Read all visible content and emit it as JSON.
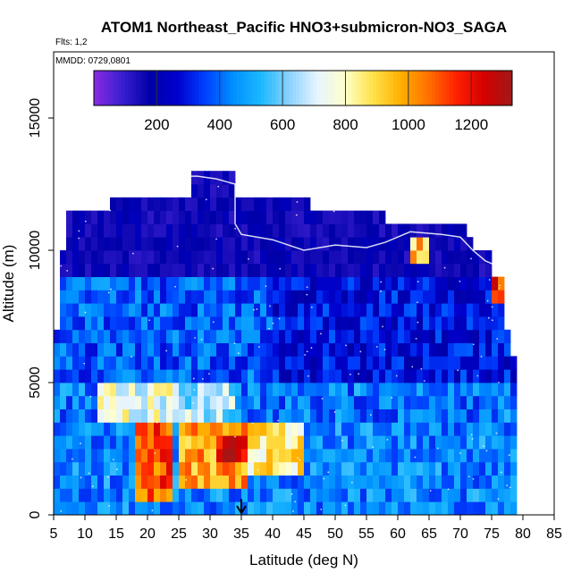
{
  "chart_data": {
    "type": "heatmap",
    "title": "ATOM1 Northeast_Pacific HNO3+submicron-NO3_SAGA",
    "subtitle_flights": "Flts: 1,2",
    "subtitle_dates": "MMDD: 0729,0801",
    "xlabel": "Latitude (deg N)",
    "ylabel": "Altitude (m)",
    "xlim": [
      5,
      85
    ],
    "ylim": [
      0,
      17500
    ],
    "x_ticks": [
      "5",
      "10",
      "15",
      "20",
      "25",
      "30",
      "35",
      "40",
      "45",
      "50",
      "55",
      "60",
      "65",
      "70",
      "75",
      "80",
      "85"
    ],
    "y_ticks": [
      "0",
      "5000",
      "10000",
      "15000"
    ],
    "colorbar": {
      "range": [
        0,
        1330
      ],
      "tick_labels": [
        "200",
        "400",
        "600",
        "800",
        "1000",
        "1200"
      ],
      "colors": [
        "#8a2be2",
        "#3a1fd0",
        "#0000a8",
        "#0000cd",
        "#0040ff",
        "#0090ff",
        "#1cb8ff",
        "#8ad2ff",
        "#e6f4ff",
        "#ffffcc",
        "#ffe24a",
        "#ffb000",
        "#ff7000",
        "#ff2000",
        "#d40000",
        "#a01818"
      ]
    },
    "grid_lat_step": 1,
    "grid_alt_step": 500,
    "column_tops": [
      {
        "from": 5,
        "to": 6,
        "top": 7000
      },
      {
        "from": 6,
        "to": 7,
        "top": 10000
      },
      {
        "from": 7,
        "to": 14,
        "top": 11500
      },
      {
        "from": 14,
        "to": 22,
        "top": 12000
      },
      {
        "from": 22,
        "to": 27,
        "top": 12000
      },
      {
        "from": 27,
        "to": 34,
        "top": 13000
      },
      {
        "from": 34,
        "to": 46,
        "top": 12000
      },
      {
        "from": 46,
        "to": 58,
        "top": 11500
      },
      {
        "from": 58,
        "to": 71,
        "top": 11000
      },
      {
        "from": 71,
        "to": 72,
        "top": 10500
      },
      {
        "from": 72,
        "to": 75,
        "top": 10000
      },
      {
        "from": 75,
        "to": 77,
        "top": 9000
      },
      {
        "from": 77,
        "to": 78,
        "top": 7000
      },
      {
        "from": 78,
        "to": 79,
        "top": 6000
      }
    ],
    "bottom_row_end": 79,
    "features": [
      {
        "lat": [
          18,
          24
        ],
        "alt": [
          500,
          3500
        ],
        "value": 1100
      },
      {
        "lat": [
          25,
          36
        ],
        "alt": [
          1000,
          3500
        ],
        "value": 1000
      },
      {
        "lat": [
          31,
          36
        ],
        "alt": [
          1800,
          2800
        ],
        "value": 1230
      },
      {
        "lat": [
          36,
          45
        ],
        "alt": [
          1500,
          3500
        ],
        "value": 850
      },
      {
        "lat": [
          12,
          26
        ],
        "alt": [
          3500,
          5000
        ],
        "value": 750
      },
      {
        "lat": [
          24,
          34
        ],
        "alt": [
          3500,
          5000
        ],
        "value": 650
      },
      {
        "lat": [
          62,
          65
        ],
        "alt": [
          9500,
          10500
        ],
        "value": 950
      },
      {
        "lat": [
          75,
          78
        ],
        "alt": [
          8000,
          9500
        ],
        "value": 1150
      }
    ],
    "arrow": {
      "lat": 35,
      "alt_from": 600,
      "alt_to": 0
    },
    "flight_track": [
      [
        22,
        12800
      ],
      [
        28,
        12800
      ],
      [
        31,
        12700
      ],
      [
        34,
        12500
      ],
      [
        34,
        11000
      ],
      [
        35,
        10600
      ],
      [
        40,
        10400
      ],
      [
        45,
        10000
      ],
      [
        50,
        10200
      ],
      [
        55,
        10100
      ],
      [
        58,
        10300
      ],
      [
        62,
        10700
      ],
      [
        67,
        10600
      ],
      [
        70,
        10500
      ],
      [
        72,
        10000
      ],
      [
        74,
        9600
      ],
      [
        76,
        9400
      ]
    ]
  }
}
